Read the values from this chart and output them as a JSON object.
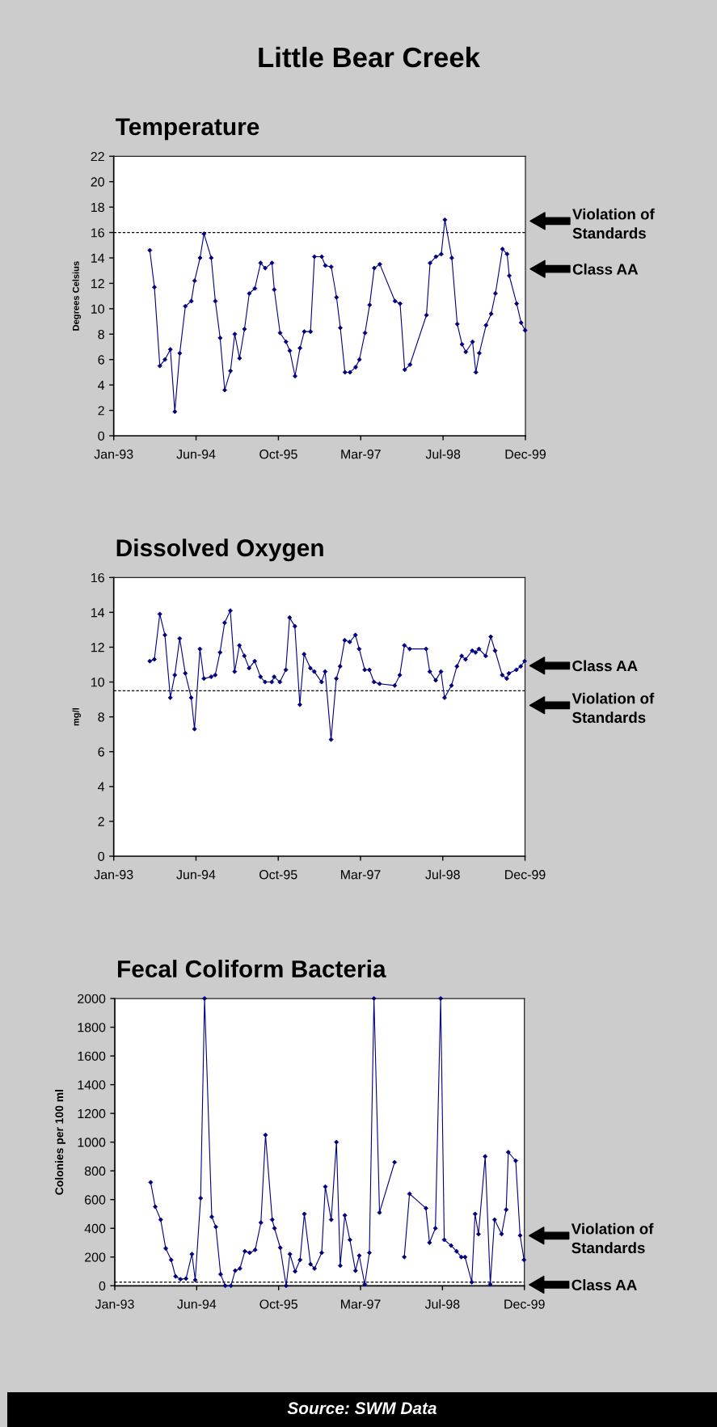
{
  "chart_data": [
    {
      "type": "line",
      "title": "Little Bear Creek",
      "subtitle": "Temperature",
      "ylabel": "Degrees Celsius",
      "x": [
        "1993-09-07",
        "1993-10-05",
        "1993-11-07",
        "1993-12-08",
        "1994-01-10",
        "1994-02-06",
        "1994-03-08",
        "1994-04-11",
        "1994-05-17",
        "1994-06-06",
        "1994-07-09",
        "1994-08-02",
        "1994-09-15",
        "1994-10-10",
        "1994-11-08",
        "1994-12-06",
        "1995-01-10",
        "1995-02-05",
        "1995-03-06",
        "1995-04-05",
        "1995-05-04",
        "1995-06-07",
        "1995-07-12",
        "1995-08-09",
        "1995-09-19",
        "1995-10-03",
        "1995-11-07",
        "1995-12-13",
        "1996-01-05",
        "1996-02-06",
        "1996-03-07",
        "1996-04-02",
        "1996-05-10",
        "1996-06-03",
        "1996-07-17",
        "1996-08-08",
        "1996-09-13",
        "1996-10-15",
        "1996-11-07",
        "1996-12-05",
        "1997-01-05",
        "1997-02-08",
        "1997-03-03",
        "1997-04-06",
        "1997-05-04",
        "1997-06-01",
        "1997-07-05",
        "1997-10-05",
        "1997-11-05",
        "1997-12-03",
        "1998-01-04",
        "1998-04-14",
        "1998-05-06",
        "1998-06-11",
        "1998-07-13",
        "1998-08-04",
        "1998-09-15",
        "1998-10-18",
        "1998-11-16",
        "1998-12-09",
        "1999-01-19",
        "1999-02-08",
        "1999-03-01",
        "1999-04-11",
        "1999-05-12",
        "1999-06-07",
        "1999-07-20",
        "1999-08-17",
        "1999-08-30",
        "1999-10-14",
        "1999-11-10",
        "1999-12-04"
      ],
      "series": [
        {
          "color": "#000080",
          "values": [
            14.6,
            11.7,
            5.5,
            6.0,
            6.8,
            1.9,
            6.5,
            10.2,
            10.6,
            12.2,
            14.0,
            15.9,
            14.0,
            10.6,
            7.7,
            3.6,
            5.1,
            8.0,
            6.1,
            8.4,
            11.2,
            11.6,
            13.6,
            13.2,
            13.6,
            11.5,
            8.1,
            7.4,
            6.7,
            4.7,
            6.9,
            8.2,
            8.2,
            14.1,
            14.1,
            13.4,
            13.3,
            10.9,
            8.5,
            5.0,
            5.0,
            5.4,
            6.0,
            8.1,
            10.3,
            13.2,
            13.5,
            10.6,
            10.4,
            5.2,
            5.6,
            9.5,
            13.6,
            14.1,
            14.3,
            17.0,
            14.0,
            8.8,
            7.2,
            6.6,
            7.4,
            5.0,
            6.5,
            8.7,
            9.6,
            11.2,
            14.7,
            14.3,
            12.6,
            10.4,
            8.9,
            8.3
          ]
        }
      ],
      "xlim": [
        "1993-01-31",
        "1999-12-06"
      ],
      "xticks": [
        {
          "value": "1993-01-31",
          "label": "Jan-93"
        },
        {
          "value": "1994-06-15",
          "label": "Jun-94"
        },
        {
          "value": "1995-10-28",
          "label": "Oct-95"
        },
        {
          "value": "1997-03-11",
          "label": "Mar-97"
        },
        {
          "value": "1998-07-24",
          "label": "Jul-98"
        },
        {
          "value": "1999-12-06",
          "label": "Dec-99"
        }
      ],
      "ylim": [
        0,
        22
      ],
      "yticks": [
        0,
        2,
        4,
        6,
        8,
        10,
        12,
        14,
        16,
        18,
        20,
        22
      ],
      "marker": "diamond",
      "line_style": "solid",
      "ref_lines": [
        {
          "axis": "y",
          "value": 16,
          "color": "#000000",
          "line_style": "dashed"
        }
      ],
      "annotations": [
        "Violation of\nStandards",
        "Class AA"
      ]
    },
    {
      "type": "line",
      "title": "Dissolved Oxygen",
      "ylabel": "mg/l",
      "x": [
        "1993-09-07",
        "1993-10-05",
        "1993-11-07",
        "1993-12-08",
        "1994-01-10",
        "1994-02-06",
        "1994-03-08",
        "1994-04-11",
        "1994-05-17",
        "1994-06-06",
        "1994-07-09",
        "1994-08-02",
        "1994-09-15",
        "1994-10-10",
        "1994-11-08",
        "1994-12-06",
        "1995-01-10",
        "1995-02-05",
        "1995-03-06",
        "1995-04-05",
        "1995-05-04",
        "1995-06-07",
        "1995-07-12",
        "1995-08-09",
        "1995-09-19",
        "1995-10-03",
        "1995-11-07",
        "1995-12-13",
        "1996-01-05",
        "1996-02-06",
        "1996-03-07",
        "1996-04-02",
        "1996-05-10",
        "1996-06-03",
        "1996-07-17",
        "1996-08-08",
        "1996-09-13",
        "1996-10-15",
        "1996-11-07",
        "1996-12-05",
        "1997-01-05",
        "1997-02-08",
        "1997-03-03",
        "1997-04-06",
        "1997-05-04",
        "1997-06-01",
        "1997-07-05",
        "1997-10-05",
        "1997-11-05",
        "1997-12-03",
        "1998-01-04",
        "1998-04-14",
        "1998-05-06",
        "1998-06-11",
        "1998-07-13",
        "1998-08-04",
        "1998-09-15",
        "1998-10-18",
        "1998-11-16",
        "1998-12-09",
        "1999-01-19",
        "1999-02-08",
        "1999-03-01",
        "1999-04-11",
        "1999-05-12",
        "1999-06-07",
        "1999-07-20",
        "1999-08-17",
        "1999-08-30",
        "1999-10-14",
        "1999-11-10",
        "1999-12-04"
      ],
      "series": [
        {
          "color": "#000080",
          "values": [
            11.2,
            11.3,
            13.9,
            12.7,
            9.1,
            10.4,
            12.5,
            10.5,
            9.1,
            7.3,
            11.9,
            10.2,
            10.3,
            10.4,
            11.7,
            13.4,
            14.1,
            10.6,
            12.1,
            11.5,
            10.8,
            11.2,
            10.3,
            10.0,
            10.0,
            10.3,
            10.0,
            10.7,
            13.7,
            13.2,
            8.7,
            11.6,
            10.8,
            10.6,
            10.0,
            10.6,
            6.7,
            10.2,
            10.9,
            12.4,
            12.3,
            12.7,
            11.9,
            10.7,
            10.7,
            10.0,
            9.9,
            9.8,
            10.4,
            12.1,
            11.9,
            11.9,
            10.6,
            10.1,
            10.6,
            9.1,
            9.8,
            10.9,
            11.5,
            11.3,
            11.8,
            11.7,
            11.9,
            11.5,
            12.6,
            11.8,
            10.4,
            10.2,
            10.5,
            10.7,
            10.9,
            11.2
          ]
        }
      ],
      "xlim": [
        "1993-01-31",
        "1999-12-06"
      ],
      "xticks": [
        {
          "value": "1993-01-31",
          "label": "Jan-93"
        },
        {
          "value": "1994-06-15",
          "label": "Jun-94"
        },
        {
          "value": "1995-10-28",
          "label": "Oct-95"
        },
        {
          "value": "1997-03-11",
          "label": "Mar-97"
        },
        {
          "value": "1998-07-24",
          "label": "Jul-98"
        },
        {
          "value": "1999-12-06",
          "label": "Dec-99"
        }
      ],
      "ylim": [
        0,
        16
      ],
      "yticks": [
        0,
        2,
        4,
        6,
        8,
        10,
        12,
        14,
        16
      ],
      "marker": "diamond",
      "line_style": "solid",
      "ref_lines": [
        {
          "axis": "y",
          "value": 9.5,
          "color": "#000000",
          "line_style": "dashed"
        }
      ],
      "annotations": [
        "Class AA",
        "Violation of\nStandards"
      ]
    },
    {
      "type": "line",
      "title": "Fecal Coliform Bacteria",
      "ylabel": "Colonies per 100 ml",
      "x": [
        "1993-09-07",
        "1993-10-05",
        "1993-11-07",
        "1993-12-08",
        "1994-01-10",
        "1994-02-06",
        "1994-03-08",
        "1994-04-11",
        "1994-05-17",
        "1994-06-06",
        "1994-07-09",
        "1994-08-02",
        "1994-09-15",
        "1994-10-10",
        "1994-11-08",
        "1994-12-06",
        "1995-01-10",
        "1995-02-05",
        "1995-03-06",
        "1995-04-05",
        "1995-05-04",
        "1995-06-07",
        "1995-07-12",
        "1995-08-09",
        "1995-09-19",
        "1995-10-03",
        "1995-11-07",
        "1995-12-13",
        "1996-01-05",
        "1996-02-06",
        "1996-03-07",
        "1996-04-02",
        "1996-05-10",
        "1996-06-03",
        "1996-07-17",
        "1996-08-08",
        "1996-09-13",
        "1996-10-15",
        "1996-11-07",
        "1996-12-05",
        "1997-01-05",
        "1997-02-08",
        "1997-03-03",
        "1997-04-06",
        "1997-05-04",
        "1997-06-01",
        "1997-07-05",
        "1997-10-05",
        "1997-11-05",
        "1997-12-03",
        "1998-01-04",
        "1998-04-14",
        "1998-05-06",
        "1998-06-11",
        "1998-07-13",
        "1998-08-04",
        "1998-09-15",
        "1998-10-18",
        "1998-11-16",
        "1998-12-09",
        "1999-01-19",
        "1999-02-08",
        "1999-03-01",
        "1999-04-11",
        "1999-05-12",
        "1999-06-07",
        "1999-07-20",
        "1999-08-17",
        "1999-08-30",
        "1999-10-14",
        "1999-11-10",
        "1999-12-04"
      ],
      "series": [
        {
          "color": "#000080",
          "values": [
            720,
            550,
            460,
            260,
            180,
            65,
            45,
            50,
            220,
            40,
            610,
            2000,
            480,
            410,
            80,
            0,
            0,
            105,
            120,
            240,
            230,
            250,
            440,
            1050,
            460,
            400,
            265,
            0,
            220,
            100,
            180,
            500,
            150,
            120,
            230,
            690,
            460,
            1000,
            140,
            490,
            320,
            105,
            210,
            10,
            230,
            2000,
            510,
            860,
            null,
            200,
            640,
            540,
            300,
            400,
            2000,
            320,
            280,
            240,
            200,
            200,
            25,
            500,
            360,
            900,
            10,
            460,
            360,
            530,
            930,
            870,
            350,
            180
          ]
        }
      ],
      "xlim": [
        "1993-01-31",
        "1999-12-06"
      ],
      "xticks": [
        {
          "value": "1993-01-31",
          "label": "Jan-93"
        },
        {
          "value": "1994-06-15",
          "label": "Jun-94"
        },
        {
          "value": "1995-10-28",
          "label": "Oct-95"
        },
        {
          "value": "1997-03-11",
          "label": "Mar-97"
        },
        {
          "value": "1998-07-24",
          "label": "Jul-98"
        },
        {
          "value": "1999-12-06",
          "label": "Dec-99"
        }
      ],
      "ylim": [
        0,
        2000
      ],
      "yticks": [
        0,
        200,
        400,
        600,
        800,
        1000,
        1200,
        1400,
        1600,
        1800,
        2000
      ],
      "marker": "diamond",
      "line_style": "solid",
      "ref_lines": [
        {
          "axis": "y",
          "value": 25,
          "color": "#000000",
          "line_style": "dashed"
        }
      ],
      "annotations": [
        "Violation of\nStandards",
        "Class AA",
        "Source: SWM Data"
      ]
    }
  ]
}
